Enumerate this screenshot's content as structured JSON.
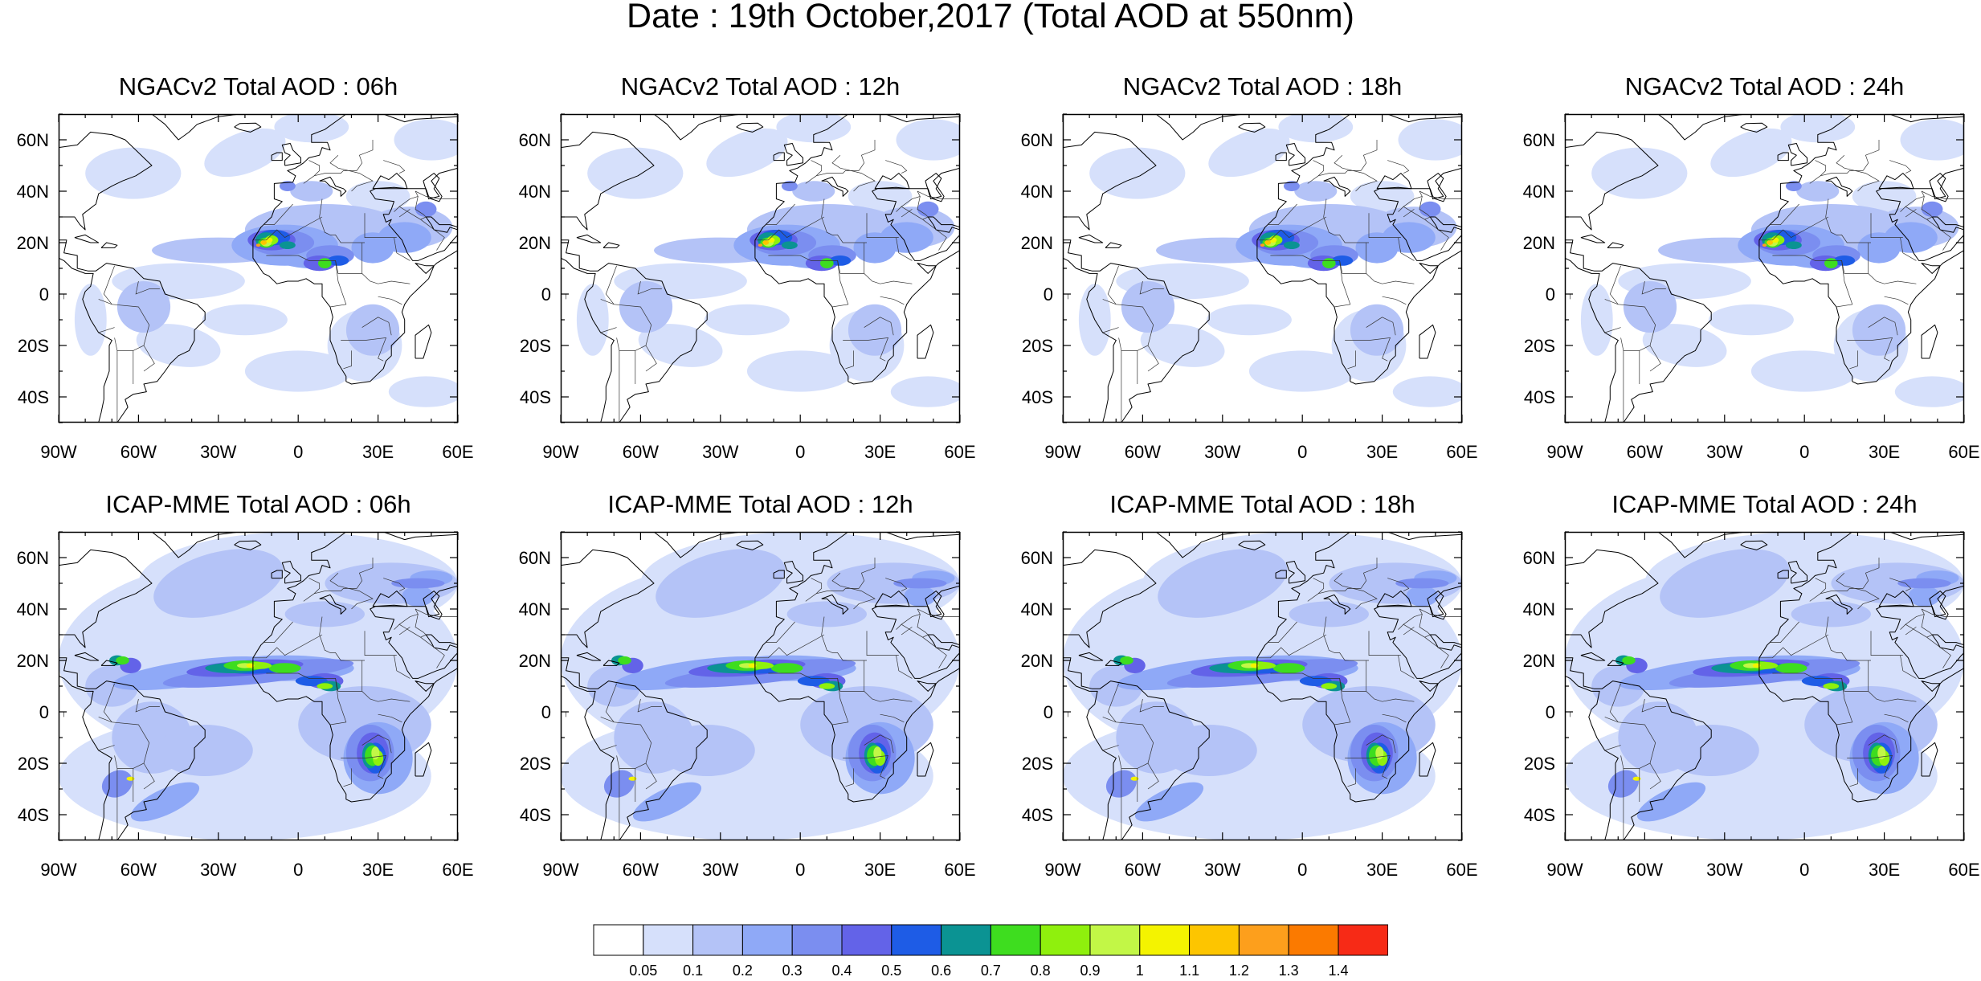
{
  "title": "Date : 19th October,2017 (Total AOD at 550nm)",
  "panels": [
    {
      "title": "NGACv2 Total AOD : 06h",
      "model": "NGACv2",
      "hour": "06h"
    },
    {
      "title": "NGACv2 Total AOD : 12h",
      "model": "NGACv2",
      "hour": "12h"
    },
    {
      "title": "NGACv2 Total AOD : 18h",
      "model": "NGACv2",
      "hour": "18h"
    },
    {
      "title": "NGACv2 Total AOD : 24h",
      "model": "NGACv2",
      "hour": "24h"
    },
    {
      "title": "ICAP-MME Total AOD : 06h",
      "model": "ICAP-MME",
      "hour": "06h"
    },
    {
      "title": "ICAP-MME Total AOD : 12h",
      "model": "ICAP-MME",
      "hour": "12h"
    },
    {
      "title": "ICAP-MME Total AOD : 18h",
      "model": "ICAP-MME",
      "hour": "18h"
    },
    {
      "title": "ICAP-MME Total AOD : 24h",
      "model": "ICAP-MME",
      "hour": "24h"
    }
  ],
  "axes": {
    "lat_ticks": [
      {
        "value": 60,
        "label": "60N"
      },
      {
        "value": 40,
        "label": "40N"
      },
      {
        "value": 20,
        "label": "20N"
      },
      {
        "value": 0,
        "label": "0"
      },
      {
        "value": -20,
        "label": "20S"
      },
      {
        "value": -40,
        "label": "40S"
      }
    ],
    "lon_ticks": [
      {
        "value": -90,
        "label": "90W"
      },
      {
        "value": -60,
        "label": "60W"
      },
      {
        "value": -30,
        "label": "30W"
      },
      {
        "value": 0,
        "label": "0"
      },
      {
        "value": 30,
        "label": "30E"
      },
      {
        "value": 60,
        "label": "60E"
      }
    ],
    "lon_range": [
      -90,
      60
    ],
    "lat_range": [
      -50,
      70
    ]
  },
  "colorbar": {
    "colors": [
      "#ffffff",
      "#d6e0fb",
      "#b4c3f7",
      "#8fa9f7",
      "#7b8ef0",
      "#6363e8",
      "#1e5ce6",
      "#0b9393",
      "#3edd1f",
      "#8ff00d",
      "#c2f746",
      "#f4f300",
      "#fdc500",
      "#fd9f1c",
      "#fb7a00",
      "#f72a16"
    ],
    "labels": [
      "0.05",
      "0.1",
      "0.2",
      "0.3",
      "0.4",
      "0.5",
      "0.6",
      "0.7",
      "0.8",
      "0.9",
      "1",
      "1.1",
      "1.2",
      "1.3",
      "1.4"
    ]
  }
}
